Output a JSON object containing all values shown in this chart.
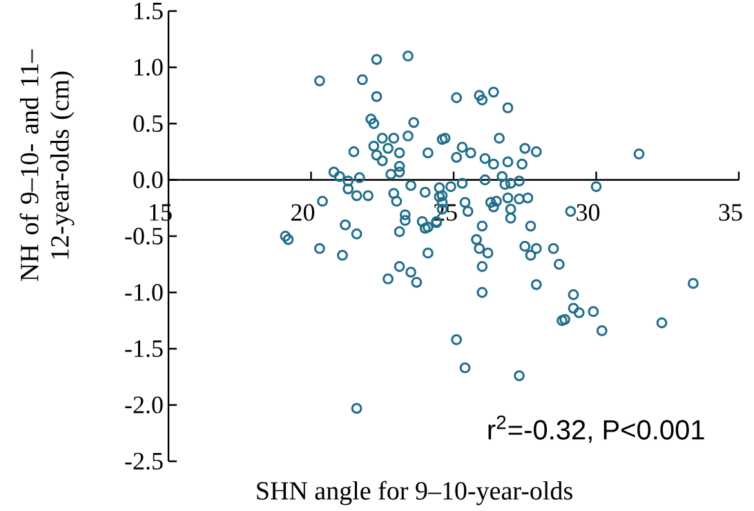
{
  "chart_data": {
    "type": "scatter",
    "xlabel": "SHN angle for 9–10-year-olds",
    "ylabel": "NH of 9–10- and 11–12-year-olds (cm)",
    "annotations": [
      "r$^{2}$=-0.32, P<0.001"
    ],
    "marker": "circle",
    "grid": false,
    "xlim": [
      15,
      35
    ],
    "xticks": [
      15,
      20,
      25,
      30,
      35
    ],
    "ylim": [
      -2.5,
      1.5
    ],
    "yticks": [
      {
        "value": -2.5,
        "label": "-2.5"
      },
      {
        "value": -2,
        "label": "-2.0"
      },
      {
        "value": -1.5,
        "label": "-1.5"
      },
      {
        "value": -1,
        "label": "-1.0"
      },
      {
        "value": -0.5,
        "label": "-0.5"
      },
      {
        "value": 0,
        "label": "0.0"
      },
      {
        "value": 0.5,
        "label": "0.5"
      },
      {
        "value": 1,
        "label": "1.0"
      },
      {
        "value": 1.5,
        "label": "1.5"
      }
    ],
    "series": [
      {
        "color": "#1f6e8c",
        "x": [
          20.3,
          22.3,
          23.4,
          21.8,
          22.3,
          22.1,
          22.2,
          23.6,
          22.5,
          22.9,
          23.4,
          21.5,
          22.2,
          22.7,
          23.1,
          22.3,
          22.5,
          24.1,
          24.6,
          20.8,
          21.0,
          21.7,
          21.3,
          21.3,
          21.6,
          22.0,
          20.4,
          22.8,
          23.1,
          23.1,
          22.9,
          23.0,
          23.5,
          24.0,
          24.5,
          24.5,
          23.3,
          23.3,
          23.9,
          24.0,
          24.4,
          23.1,
          21.2,
          21.6,
          19.1,
          19.2,
          20.3,
          21.1,
          24.1,
          22.7,
          23.1,
          23.5,
          23.7,
          21.6,
          25.1,
          25.9,
          26.0,
          26.4,
          26.9,
          24.7,
          26.6,
          25.3,
          25.1,
          25.6,
          26.1,
          26.4,
          26.9,
          27.5,
          27.9,
          27.4,
          31.5,
          26.1,
          26.7,
          26.8,
          27.0,
          27.3,
          24.9,
          25.3,
          24.6,
          24.6,
          25.4,
          26.3,
          26.5,
          26.4,
          26.9,
          27.3,
          27.6,
          30.0,
          24.6,
          25.5,
          27.0,
          27.0,
          29.1,
          24.1,
          24.4,
          26.0,
          27.7,
          25.8,
          25.9,
          26.2,
          27.5,
          27.9,
          27.7,
          28.5,
          28.7,
          26.0,
          26.0,
          27.9,
          29.2,
          29.2,
          28.8,
          28.9,
          29.4,
          29.9,
          30.2,
          32.3,
          33.4,
          25.1,
          25.4,
          27.3
        ],
        "values": [
          0.88,
          1.07,
          1.1,
          0.89,
          0.74,
          0.54,
          0.5,
          0.51,
          0.37,
          0.37,
          0.39,
          0.25,
          0.3,
          0.28,
          0.24,
          0.22,
          0.17,
          0.24,
          0.36,
          0.07,
          0.03,
          0.02,
          -0.01,
          -0.08,
          -0.14,
          -0.14,
          -0.19,
          0.05,
          0.07,
          0.12,
          -0.12,
          -0.19,
          -0.05,
          -0.11,
          -0.07,
          -0.15,
          -0.31,
          -0.36,
          -0.37,
          -0.43,
          -0.37,
          -0.46,
          -0.4,
          -0.48,
          -0.5,
          -0.53,
          -0.61,
          -0.67,
          -0.65,
          -0.88,
          -0.77,
          -0.82,
          -0.91,
          -2.03,
          0.73,
          0.75,
          0.71,
          0.78,
          0.64,
          0.37,
          0.37,
          0.29,
          0.2,
          0.24,
          0.19,
          0.14,
          0.16,
          0.28,
          0.25,
          0.14,
          0.23,
          0.0,
          0.03,
          -0.04,
          -0.03,
          -0.01,
          -0.06,
          -0.03,
          -0.14,
          -0.2,
          -0.2,
          -0.2,
          -0.19,
          -0.24,
          -0.16,
          -0.17,
          -0.16,
          -0.06,
          -0.26,
          -0.28,
          -0.26,
          -0.34,
          -0.28,
          -0.42,
          -0.38,
          -0.41,
          -0.41,
          -0.53,
          -0.61,
          -0.65,
          -0.59,
          -0.61,
          -0.67,
          -0.61,
          -0.75,
          -0.77,
          -1.0,
          -0.93,
          -1.02,
          -1.14,
          -1.25,
          -1.24,
          -1.18,
          -1.17,
          -1.34,
          -1.27,
          -0.92,
          -1.42,
          -1.67,
          -1.74
        ]
      }
    ]
  }
}
